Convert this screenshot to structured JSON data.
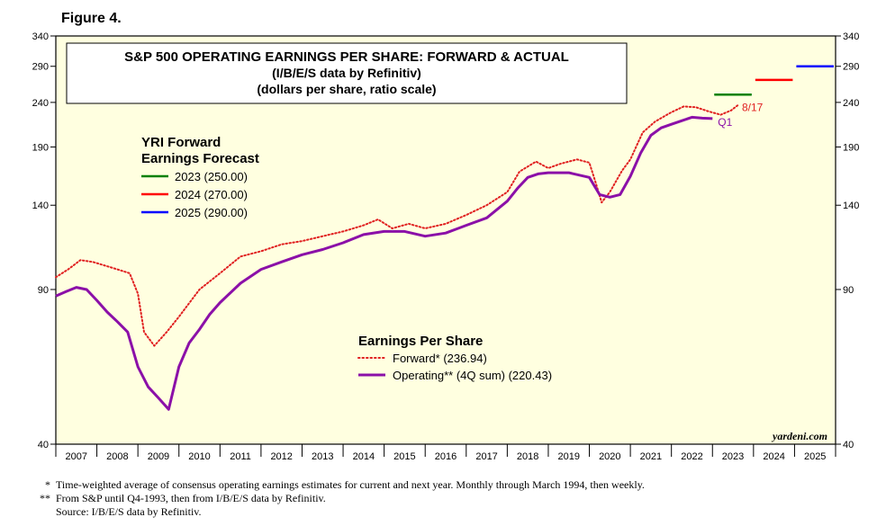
{
  "figure_label": "Figure 4.",
  "chart_data": {
    "type": "line",
    "title": "S&P 500 OPERATING EARNINGS PER SHARE: FORWARD & ACTUAL",
    "subtitle_1": "(I/B/E/S data by Refinitiv)",
    "subtitle_2": "(dollars per share, ratio scale)",
    "y_scale": "log",
    "ylim": [
      40,
      340
    ],
    "y_ticks": [
      40,
      90,
      140,
      190,
      240,
      290,
      340
    ],
    "y_tick_labels": [
      "40",
      "90",
      "140",
      "190",
      "240",
      "290",
      "340"
    ],
    "xlim": [
      2007,
      2026
    ],
    "x_tick_labels": [
      "2007",
      "2008",
      "2009",
      "2010",
      "2011",
      "2012",
      "2013",
      "2014",
      "2015",
      "2016",
      "2017",
      "2018",
      "2019",
      "2020",
      "2021",
      "2022",
      "2023",
      "2024",
      "2025"
    ],
    "grid": false,
    "background_color": "#ffffe0",
    "forecast_legend": {
      "title_line1": "YRI Forward",
      "title_line2": "Earnings Forecast",
      "items": [
        {
          "label": "2023 (250.00)",
          "color": "#008000",
          "year": 2023,
          "value": 250
        },
        {
          "label": "2024 (270.00)",
          "color": "#ff0000",
          "year": 2024,
          "value": 270
        },
        {
          "label": "2025 (290.00)",
          "color": "#0000ff",
          "year": 2025,
          "value": 290
        }
      ]
    },
    "eps_legend": {
      "title": "Earnings Per Share",
      "items": [
        {
          "label": "Forward* (236.94)",
          "color": "#e02020",
          "style": "dotted"
        },
        {
          "label": "Operating** (4Q sum) (220.43)",
          "color": "#8b10a8",
          "style": "solid"
        }
      ]
    },
    "annotations": {
      "forward_end": "8/17",
      "operating_end": "Q1",
      "watermark": "yardeni.com"
    },
    "series": [
      {
        "name": "Forward* (236.94)",
        "color": "#e02020",
        "style": "dotted",
        "x": [
          2007.0,
          2007.3,
          2007.6,
          2007.9,
          2008.2,
          2008.5,
          2008.8,
          2009.0,
          2009.15,
          2009.4,
          2009.7,
          2010.0,
          2010.5,
          2011.0,
          2011.5,
          2012.0,
          2012.5,
          2013.0,
          2013.5,
          2014.0,
          2014.5,
          2014.85,
          2015.2,
          2015.6,
          2016.0,
          2016.5,
          2017.0,
          2017.5,
          2018.0,
          2018.3,
          2018.7,
          2019.0,
          2019.3,
          2019.7,
          2020.0,
          2020.15,
          2020.3,
          2020.5,
          2020.8,
          2021.0,
          2021.3,
          2021.6,
          2022.0,
          2022.3,
          2022.6,
          2022.9,
          2023.2,
          2023.45,
          2023.63
        ],
        "y": [
          96,
          100,
          105,
          104,
          102,
          100,
          98,
          88,
          72,
          67,
          72,
          78,
          90,
          98,
          107,
          110,
          114,
          116,
          119,
          122,
          126,
          130,
          124,
          127,
          124,
          127,
          133,
          140,
          150,
          167,
          176,
          170,
          174,
          178,
          175,
          158,
          142,
          150,
          168,
          178,
          205,
          217,
          228,
          235,
          234,
          229,
          225,
          230,
          236.94
        ]
      },
      {
        "name": "Operating** (4Q sum) (220.43)",
        "color": "#8b10a8",
        "style": "solid",
        "x": [
          2007.0,
          2007.25,
          2007.5,
          2007.75,
          2008.0,
          2008.25,
          2008.5,
          2008.75,
          2009.0,
          2009.25,
          2009.5,
          2009.75,
          2010.0,
          2010.25,
          2010.5,
          2010.75,
          2011.0,
          2011.5,
          2012.0,
          2012.5,
          2013.0,
          2013.5,
          2014.0,
          2014.5,
          2015.0,
          2015.5,
          2016.0,
          2016.5,
          2017.0,
          2017.5,
          2018.0,
          2018.25,
          2018.5,
          2018.75,
          2019.0,
          2019.5,
          2020.0,
          2020.25,
          2020.5,
          2020.75,
          2021.0,
          2021.25,
          2021.5,
          2021.75,
          2022.0,
          2022.25,
          2022.5,
          2022.75,
          2023.0
        ],
        "y": [
          87,
          89,
          91,
          90,
          85,
          80,
          76,
          72,
          60,
          54,
          51,
          48,
          60,
          68,
          73,
          79,
          84,
          93,
          100,
          104,
          108,
          111,
          115,
          120,
          122,
          122,
          119,
          121,
          126,
          131,
          143,
          153,
          162,
          165,
          166,
          166,
          162,
          148,
          146,
          148,
          163,
          184,
          202,
          210,
          214,
          218,
          222,
          221,
          220.43
        ]
      }
    ],
    "footnotes": [
      {
        "mark": "*",
        "text": "Time-weighted average of consensus operating earnings estimates for current and next year. Monthly through March 1994, then weekly."
      },
      {
        "mark": "**",
        "text": "From S&P until Q4-1993, then from I/B/E/S data by Refinitiv."
      },
      {
        "mark": "",
        "text": "Source: I/B/E/S data by Refinitiv."
      }
    ]
  }
}
